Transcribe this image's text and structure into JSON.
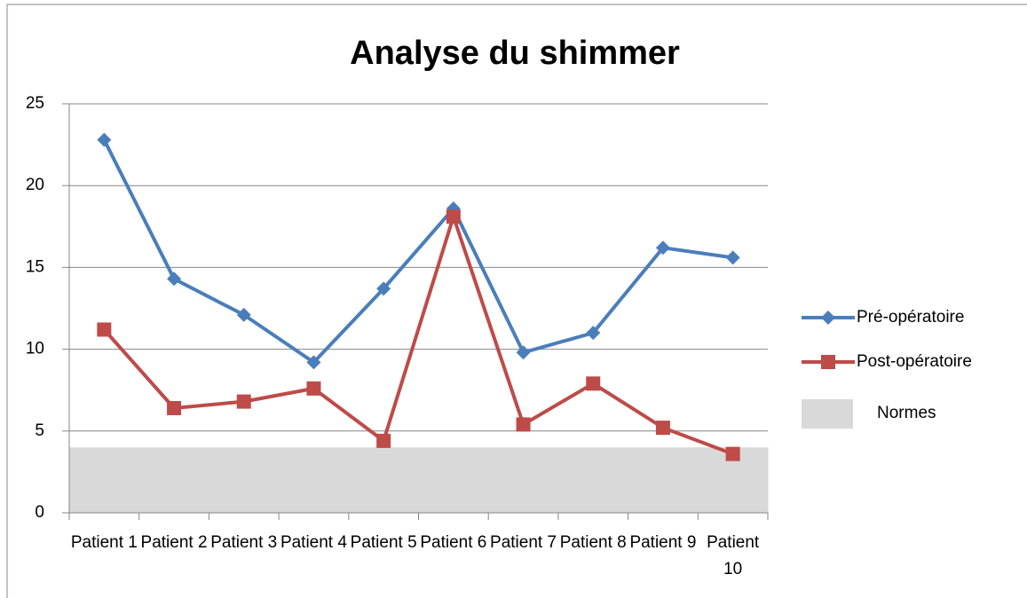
{
  "chart_data": {
    "type": "line",
    "title": "Analyse du shimmer",
    "categories": [
      "Patient 1",
      "Patient 2",
      "Patient 3",
      "Patient 4",
      "Patient 5",
      "Patient 6",
      "Patient 7",
      "Patient 8",
      "Patient 9",
      "Patient 10"
    ],
    "series": [
      {
        "name": "Pré-opératoire",
        "color": "#4a7ebb",
        "marker": "diamond",
        "values": [
          22.8,
          14.3,
          12.1,
          9.2,
          13.7,
          18.6,
          9.8,
          11.0,
          16.2,
          15.6
        ]
      },
      {
        "name": "Post-opératoire",
        "color": "#be4b48",
        "marker": "square",
        "values": [
          11.2,
          6.4,
          6.8,
          7.6,
          4.4,
          18.1,
          5.4,
          7.9,
          5.2,
          3.6
        ]
      },
      {
        "name": "Normes",
        "color": "#d9d9d9",
        "kind": "band",
        "values": [
          4,
          4,
          4,
          4,
          4,
          4,
          4,
          4,
          4,
          4
        ]
      }
    ],
    "ylim": [
      0,
      25
    ],
    "yticks": [
      0,
      5,
      10,
      15,
      20,
      25
    ],
    "grid": true,
    "legend": "right"
  }
}
